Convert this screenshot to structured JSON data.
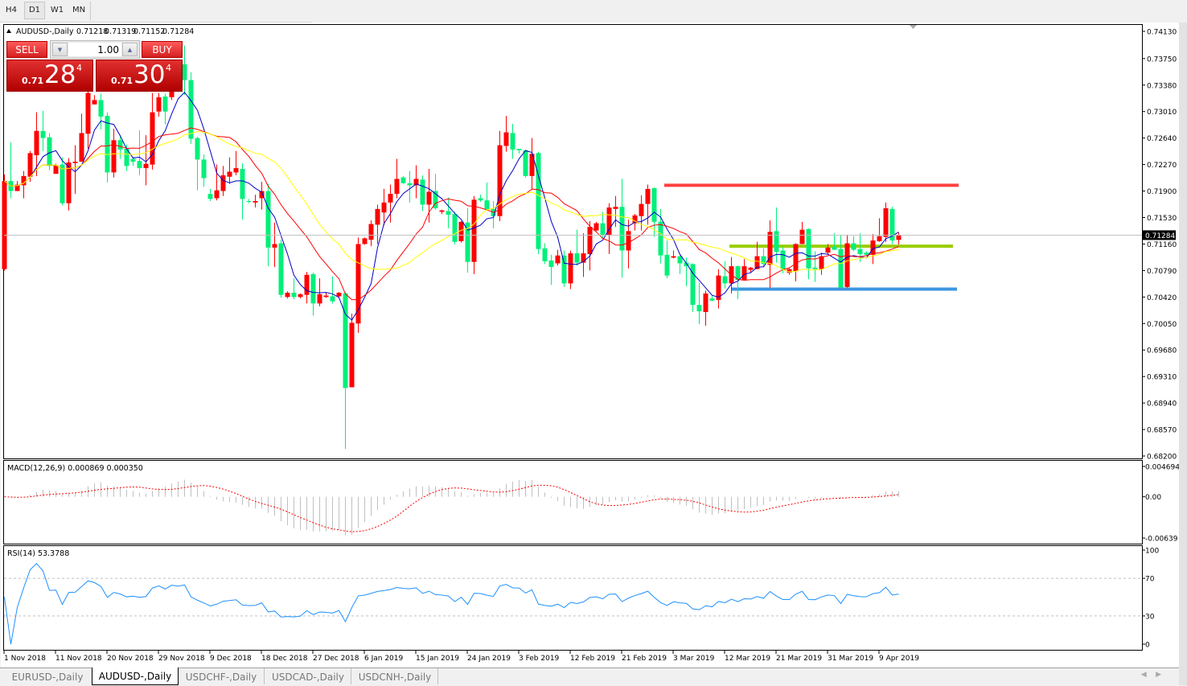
{
  "toolbar": {
    "timeframes": [
      {
        "label": "H4",
        "active": false
      },
      {
        "label": "D1",
        "active": true
      },
      {
        "label": "W1",
        "active": false
      },
      {
        "label": "MN",
        "active": false
      }
    ]
  },
  "chart_header": {
    "symbol": "AUDUSD-,Daily",
    "open": "0.71218",
    "high": "0.71319",
    "low": "0.71152",
    "close": "0.71284",
    "collapse_icon": "triangle-up-icon"
  },
  "trade_panel": {
    "sell_label": "SELL",
    "buy_label": "BUY",
    "lot": "1.00",
    "sell_price": {
      "prefix": "0.71",
      "big": "28",
      "sup": "4"
    },
    "buy_price": {
      "prefix": "0.71",
      "big": "30",
      "sup": "4"
    }
  },
  "colors": {
    "bull": "#ff0000",
    "bear": "#00f07a",
    "ma_fast": "#0000c8",
    "ma_mid": "#ff0000",
    "ma_slow": "#ffff00",
    "resistance": "#ff4040",
    "mid_level": "#9acd00",
    "support": "#3c96e0",
    "rsi": "#1e90ff",
    "macd_hist": "#c0c0c0",
    "macd_signal": "#ff0000"
  },
  "chart_data": [
    {
      "type": "candlestick",
      "title": "AUDUSD-,Daily",
      "ylim": [
        0.682,
        0.7413
      ],
      "yticks": [
        "0.74130",
        "0.73750",
        "0.73380",
        "0.73010",
        "0.72640",
        "0.72270",
        "0.71900",
        "0.71530",
        "0.71160",
        "0.70790",
        "0.70420",
        "0.70050",
        "0.69680",
        "0.69310",
        "0.68940",
        "0.68570",
        "0.68200"
      ],
      "xticks": [
        "1 Nov 2018",
        "11 Nov 2018",
        "20 Nov 2018",
        "29 Nov 2018",
        "9 Dec 2018",
        "18 Dec 2018",
        "27 Dec 2018",
        "6 Jan 2019",
        "15 Jan 2019",
        "24 Jan 2019",
        "3 Feb 2019",
        "12 Feb 2019",
        "21 Feb 2019",
        "3 Mar 2019",
        "12 Mar 2019",
        "21 Mar 2019",
        "31 Mar 2019",
        "9 Apr 2019"
      ],
      "current_price": "0.71284",
      "horizontal_lines": [
        {
          "price": 0.7198,
          "color": "#ff4040"
        },
        {
          "price": 0.7113,
          "color": "#9acd00"
        },
        {
          "price": 0.7053,
          "color": "#3c96e0"
        }
      ],
      "ohlc": [
        [
          0.7081,
          0.7213,
          0.7079,
          0.7204
        ],
        [
          0.7204,
          0.7258,
          0.718,
          0.719
        ],
        [
          0.719,
          0.7204,
          0.719,
          0.7199
        ],
        [
          0.7198,
          0.7218,
          0.718,
          0.7211
        ],
        [
          0.721,
          0.7246,
          0.7203,
          0.7243
        ],
        [
          0.724,
          0.73,
          0.7211,
          0.7274
        ],
        [
          0.7274,
          0.7302,
          0.7246,
          0.7264
        ],
        [
          0.7265,
          0.7271,
          0.7219,
          0.7225
        ],
        [
          0.7214,
          0.7228,
          0.7214,
          0.7226
        ],
        [
          0.7227,
          0.7237,
          0.717,
          0.7173
        ],
        [
          0.7173,
          0.7236,
          0.7163,
          0.723
        ],
        [
          0.7229,
          0.7254,
          0.7186,
          0.7231
        ],
        [
          0.7231,
          0.7298,
          0.7231,
          0.7271
        ],
        [
          0.727,
          0.7345,
          0.7249,
          0.7327
        ],
        [
          0.7311,
          0.7324,
          0.7311,
          0.7317
        ],
        [
          0.7317,
          0.7326,
          0.7276,
          0.7294
        ],
        [
          0.7295,
          0.73,
          0.7202,
          0.7216
        ],
        [
          0.7216,
          0.7277,
          0.7209,
          0.7261
        ],
        [
          0.7261,
          0.7268,
          0.7235,
          0.7248
        ],
        [
          0.7249,
          0.7255,
          0.7218,
          0.7225
        ],
        [
          0.7235,
          0.7238,
          0.7225,
          0.7231
        ],
        [
          0.7232,
          0.7275,
          0.7212,
          0.7222
        ],
        [
          0.7222,
          0.7268,
          0.7198,
          0.7228
        ],
        [
          0.7227,
          0.7327,
          0.722,
          0.73
        ],
        [
          0.7301,
          0.7327,
          0.7294,
          0.7321
        ],
        [
          0.7322,
          0.7326,
          0.7283,
          0.7301
        ],
        [
          0.7321,
          0.7347,
          0.7317,
          0.7339
        ],
        [
          0.7356,
          0.7362,
          0.7328,
          0.7333
        ],
        [
          0.7367,
          0.7393,
          0.7324,
          0.7345
        ],
        [
          0.7345,
          0.7356,
          0.7256,
          0.7263
        ],
        [
          0.7264,
          0.7266,
          0.7191,
          0.7234
        ],
        [
          0.7234,
          0.7241,
          0.7196,
          0.7208
        ],
        [
          0.7186,
          0.7193,
          0.7176,
          0.7179
        ],
        [
          0.718,
          0.7227,
          0.7177,
          0.7191
        ],
        [
          0.719,
          0.7225,
          0.7183,
          0.7212
        ],
        [
          0.721,
          0.7237,
          0.72,
          0.7217
        ],
        [
          0.7216,
          0.7246,
          0.7212,
          0.7222
        ],
        [
          0.7221,
          0.7229,
          0.715,
          0.7179
        ],
        [
          0.7176,
          0.7179,
          0.7173,
          0.7175
        ],
        [
          0.7174,
          0.7185,
          0.7167,
          0.7176
        ],
        [
          0.718,
          0.7203,
          0.7164,
          0.719
        ],
        [
          0.719,
          0.72,
          0.7085,
          0.7111
        ],
        [
          0.7111,
          0.7146,
          0.7084,
          0.7116
        ],
        [
          0.7117,
          0.7122,
          0.7041,
          0.7045
        ],
        [
          0.7042,
          0.705,
          0.704,
          0.7048
        ],
        [
          0.7048,
          0.7068,
          0.7039,
          0.7042
        ],
        [
          0.7042,
          0.7047,
          0.704,
          0.7046
        ],
        [
          0.7045,
          0.7077,
          0.7033,
          0.7073
        ],
        [
          0.7074,
          0.7076,
          0.7016,
          0.7033
        ],
        [
          0.7033,
          0.7068,
          0.7029,
          0.7046
        ],
        [
          0.7042,
          0.7048,
          0.7041,
          0.7044
        ],
        [
          0.7043,
          0.7071,
          0.7033,
          0.7036
        ],
        [
          0.7043,
          0.7049,
          0.7042,
          0.7048
        ],
        [
          0.7047,
          0.7049,
          0.683,
          0.6915
        ],
        [
          0.6916,
          0.7019,
          0.6916,
          0.7006
        ],
        [
          0.7005,
          0.7125,
          0.6992,
          0.7116
        ],
        [
          0.7116,
          0.7125,
          0.7115,
          0.7124
        ],
        [
          0.7122,
          0.7149,
          0.7113,
          0.7144
        ],
        [
          0.7143,
          0.7171,
          0.7116,
          0.7165
        ],
        [
          0.716,
          0.7193,
          0.7142,
          0.7174
        ],
        [
          0.7174,
          0.7199,
          0.7146,
          0.7186
        ],
        [
          0.7186,
          0.7235,
          0.718,
          0.7207
        ],
        [
          0.7209,
          0.7211,
          0.72,
          0.7201
        ],
        [
          0.7201,
          0.7218,
          0.7174,
          0.7198
        ],
        [
          0.7198,
          0.7226,
          0.718,
          0.7207
        ],
        [
          0.7206,
          0.7212,
          0.7162,
          0.7171
        ],
        [
          0.7171,
          0.7221,
          0.7146,
          0.7189
        ],
        [
          0.719,
          0.7214,
          0.7164,
          0.7166
        ],
        [
          0.7161,
          0.7164,
          0.7158,
          0.7163
        ],
        [
          0.7162,
          0.7181,
          0.7138,
          0.7157
        ],
        [
          0.7158,
          0.7161,
          0.7116,
          0.7119
        ],
        [
          0.712,
          0.7148,
          0.7118,
          0.7147
        ],
        [
          0.7146,
          0.7166,
          0.7076,
          0.7091
        ],
        [
          0.7091,
          0.7183,
          0.7074,
          0.7178
        ],
        [
          0.718,
          0.7185,
          0.7175,
          0.7177
        ],
        [
          0.7177,
          0.7202,
          0.7164,
          0.7164
        ],
        [
          0.7165,
          0.7176,
          0.7138,
          0.7155
        ],
        [
          0.7155,
          0.7274,
          0.7148,
          0.7254
        ],
        [
          0.7253,
          0.7295,
          0.7245,
          0.7272
        ],
        [
          0.7271,
          0.7284,
          0.7235,
          0.7248
        ],
        [
          0.7249,
          0.7249,
          0.7242,
          0.7247
        ],
        [
          0.7247,
          0.7248,
          0.7209,
          0.7211
        ],
        [
          0.7211,
          0.7264,
          0.7192,
          0.7242
        ],
        [
          0.7243,
          0.7245,
          0.7102,
          0.7109
        ],
        [
          0.711,
          0.7117,
          0.7088,
          0.7092
        ],
        [
          0.7093,
          0.7101,
          0.7059,
          0.7084
        ],
        [
          0.7089,
          0.7108,
          0.7086,
          0.71
        ],
        [
          0.71,
          0.7107,
          0.7056,
          0.7061
        ],
        [
          0.7061,
          0.7107,
          0.7053,
          0.7103
        ],
        [
          0.7103,
          0.7136,
          0.7086,
          0.709
        ],
        [
          0.709,
          0.7131,
          0.707,
          0.7103
        ],
        [
          0.7102,
          0.7148,
          0.7079,
          0.714
        ],
        [
          0.7135,
          0.7147,
          0.7134,
          0.7145
        ],
        [
          0.7145,
          0.7161,
          0.7124,
          0.7129
        ],
        [
          0.7128,
          0.7173,
          0.7102,
          0.7167
        ],
        [
          0.7165,
          0.7183,
          0.714,
          0.7168
        ],
        [
          0.7168,
          0.7207,
          0.7069,
          0.7107
        ],
        [
          0.7107,
          0.715,
          0.7082,
          0.7134
        ],
        [
          0.7145,
          0.7158,
          0.7135,
          0.7156
        ],
        [
          0.7155,
          0.7184,
          0.7135,
          0.7172
        ],
        [
          0.7172,
          0.7199,
          0.7143,
          0.7193
        ],
        [
          0.7194,
          0.7195,
          0.7126,
          0.7147
        ],
        [
          0.7147,
          0.7165,
          0.7089,
          0.71
        ],
        [
          0.7101,
          0.7121,
          0.7068,
          0.7072
        ],
        [
          0.7097,
          0.7107,
          0.7096,
          0.7099
        ],
        [
          0.7099,
          0.71,
          0.7074,
          0.7089
        ],
        [
          0.709,
          0.7097,
          0.7057,
          0.7085
        ],
        [
          0.7088,
          0.7089,
          0.7021,
          0.7031
        ],
        [
          0.7031,
          0.7062,
          0.7004,
          0.7022
        ],
        [
          0.7021,
          0.7051,
          0.7002,
          0.7047
        ],
        [
          0.704,
          0.7044,
          0.7036,
          0.7037
        ],
        [
          0.7038,
          0.7081,
          0.7026,
          0.7072
        ],
        [
          0.7071,
          0.7092,
          0.7054,
          0.7061
        ],
        [
          0.7061,
          0.7098,
          0.7047,
          0.7085
        ],
        [
          0.7085,
          0.7086,
          0.7039,
          0.7066
        ],
        [
          0.7066,
          0.7095,
          0.7066,
          0.7085
        ],
        [
          0.708,
          0.7084,
          0.7076,
          0.7083
        ],
        [
          0.7081,
          0.7119,
          0.7081,
          0.7099
        ],
        [
          0.7099,
          0.711,
          0.7084,
          0.7088
        ],
        [
          0.7087,
          0.7149,
          0.7055,
          0.7133
        ],
        [
          0.7134,
          0.7167,
          0.709,
          0.7105
        ],
        [
          0.7107,
          0.7112,
          0.7075,
          0.7081
        ],
        [
          0.7076,
          0.7082,
          0.7073,
          0.7081
        ],
        [
          0.7078,
          0.7117,
          0.7064,
          0.7116
        ],
        [
          0.7116,
          0.7147,
          0.7116,
          0.7136
        ],
        [
          0.7137,
          0.7138,
          0.7067,
          0.7082
        ],
        [
          0.7083,
          0.7106,
          0.7063,
          0.7081
        ],
        [
          0.7081,
          0.7104,
          0.7073,
          0.7099
        ],
        [
          0.7104,
          0.7116,
          0.7101,
          0.7111
        ],
        [
          0.7112,
          0.7131,
          0.7108,
          0.7108
        ],
        [
          0.7109,
          0.7129,
          0.7055,
          0.7055
        ],
        [
          0.7056,
          0.7129,
          0.7055,
          0.7117
        ],
        [
          0.7117,
          0.7127,
          0.7106,
          0.7108
        ],
        [
          0.7109,
          0.7131,
          0.7091,
          0.7102
        ],
        [
          0.7104,
          0.7106,
          0.71,
          0.7101
        ],
        [
          0.7101,
          0.713,
          0.7088,
          0.7121
        ],
        [
          0.712,
          0.7152,
          0.7119,
          0.7127
        ],
        [
          0.7126,
          0.7174,
          0.7119,
          0.7166
        ],
        [
          0.7165,
          0.7168,
          0.7116,
          0.7121
        ],
        [
          0.71218,
          0.71319,
          0.71152,
          0.71284
        ]
      ]
    },
    {
      "type": "bar",
      "label": "MACD(12,26,9) 0.000869 0.000350",
      "params": [
        12,
        26,
        9
      ],
      "ylim": [
        -0.00639,
        0.004694
      ],
      "yticks": [
        "0.004694",
        "0.00",
        "-0.00639"
      ]
    },
    {
      "type": "line",
      "label": "RSI(14) 53.3788",
      "period": 14,
      "ylim": [
        0,
        100
      ],
      "levels": [
        30,
        70
      ],
      "yticks": [
        "100",
        "70",
        "30",
        "0"
      ]
    }
  ],
  "tabs": [
    {
      "label": "EURUSD-,Daily",
      "active": false
    },
    {
      "label": "AUDUSD-,Daily",
      "active": true
    },
    {
      "label": "USDCHF-,Daily",
      "active": false
    },
    {
      "label": "USDCAD-,Daily",
      "active": false
    },
    {
      "label": "USDCNH-,Daily",
      "active": false
    }
  ]
}
